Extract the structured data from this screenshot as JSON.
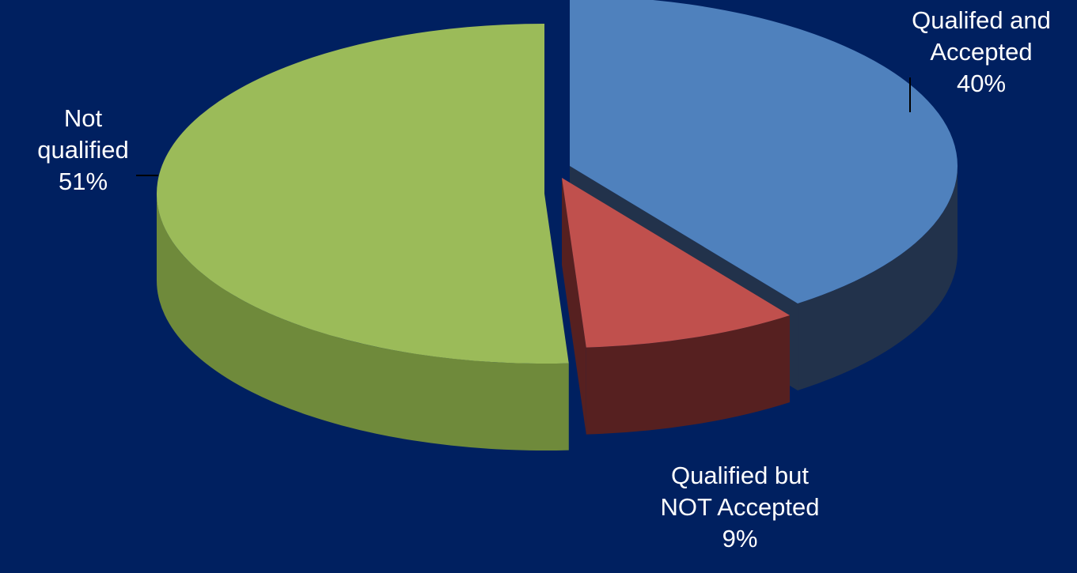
{
  "chart_data": {
    "type": "pie",
    "style": "3d-exploded",
    "slices": [
      {
        "name": "Qualifed and Accepted",
        "value": 40,
        "label_lines": [
          "Qualifed and",
          "Accepted"
        ],
        "pct_label": "40%",
        "color": "#4F81BD",
        "side_color": "#22324B"
      },
      {
        "name": "Qualified but NOT Accepted",
        "value": 9,
        "label_lines": [
          "Qualified but",
          "NOT Accepted"
        ],
        "pct_label": "9%",
        "color": "#C0504D",
        "side_color": "#562020"
      },
      {
        "name": "Not qualified",
        "value": 51,
        "label_lines": [
          "Not",
          "qualified"
        ],
        "pct_label": "51%",
        "color": "#9BBB59",
        "side_color": "#6F8A3B"
      }
    ]
  }
}
